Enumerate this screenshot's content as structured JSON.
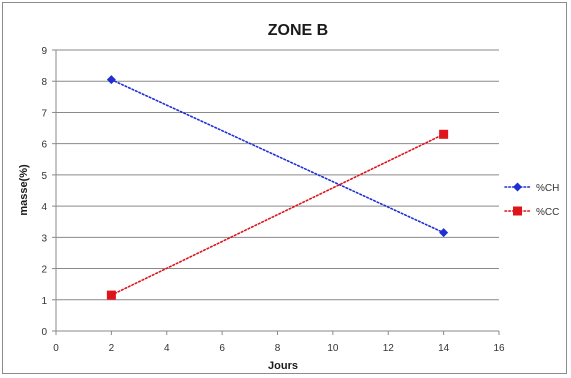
{
  "chart_data": {
    "type": "line",
    "title": "ZONE B",
    "xlabel": "Jours",
    "ylabel": "masse(%)",
    "xlim": [
      0,
      16
    ],
    "ylim": [
      0,
      9
    ],
    "x_ticks": [
      "0",
      "2",
      "4",
      "6",
      "8",
      "10",
      "12",
      "14",
      "16"
    ],
    "y_ticks": [
      "0",
      "1",
      "2",
      "3",
      "4",
      "5",
      "6",
      "7",
      "8",
      "9"
    ],
    "grid": "horizontal",
    "legend_position": "right",
    "series": [
      {
        "name": "%CH",
        "color": "#1f2fd6",
        "marker": "diamond",
        "line_style": "dotted",
        "points": [
          {
            "x": 2,
            "y": 8.05
          },
          {
            "x": 14,
            "y": 3.15
          }
        ]
      },
      {
        "name": "%CC",
        "color": "#e0141b",
        "marker": "square",
        "line_style": "dotted",
        "points": [
          {
            "x": 2,
            "y": 1.15
          },
          {
            "x": 14,
            "y": 6.3
          }
        ]
      }
    ]
  }
}
